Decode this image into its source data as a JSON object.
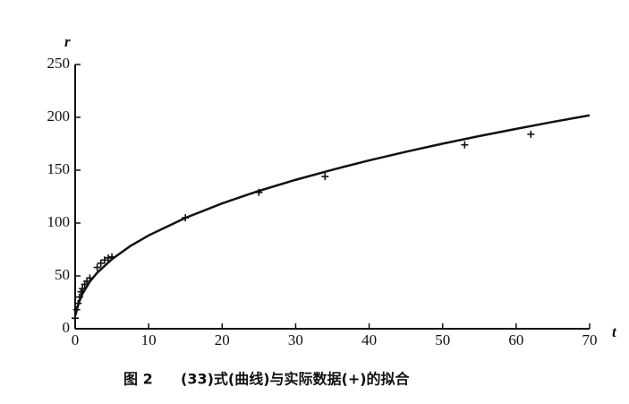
{
  "chart_data": {
    "type": "scatter",
    "caption_label": "图 2",
    "title": "(33)式(曲线)与实际数据(+)的拟合",
    "xlabel": "t",
    "ylabel": "r",
    "xlim": [
      0,
      70
    ],
    "xticks": [
      0,
      10,
      20,
      30,
      40,
      50,
      60,
      70
    ],
    "ylim": [
      0,
      250
    ],
    "yticks": [
      0,
      50,
      100,
      150,
      200,
      250
    ],
    "grid": false,
    "series": [
      {
        "type": "line",
        "color": "#111111",
        "x": [
          0,
          0.5,
          1,
          2,
          3,
          5,
          7.5,
          10,
          15,
          20,
          25,
          30,
          35,
          40,
          45,
          50,
          55,
          60,
          65,
          70
        ],
        "values": [
          12,
          24.7,
          33.2,
          44.6,
          53,
          65.8,
          78.2,
          88.3,
          104.9,
          118.6,
          130.4,
          140.9,
          150.4,
          159.3,
          167.4,
          175.1,
          182.3,
          189.1,
          195.7,
          201.9
        ]
      },
      {
        "type": "scatter",
        "marker": "+",
        "color": "#111111",
        "x": [
          0,
          0.2,
          0.4,
          0.6,
          0.8,
          1,
          1.3,
          1.6,
          2,
          3,
          3.5,
          4,
          4.5,
          5,
          15,
          25,
          34,
          53,
          62
        ],
        "values": [
          10,
          18,
          24,
          30,
          35,
          38,
          42,
          45,
          48,
          58,
          62,
          65,
          67,
          68,
          105,
          129,
          144,
          174,
          184
        ]
      }
    ]
  }
}
